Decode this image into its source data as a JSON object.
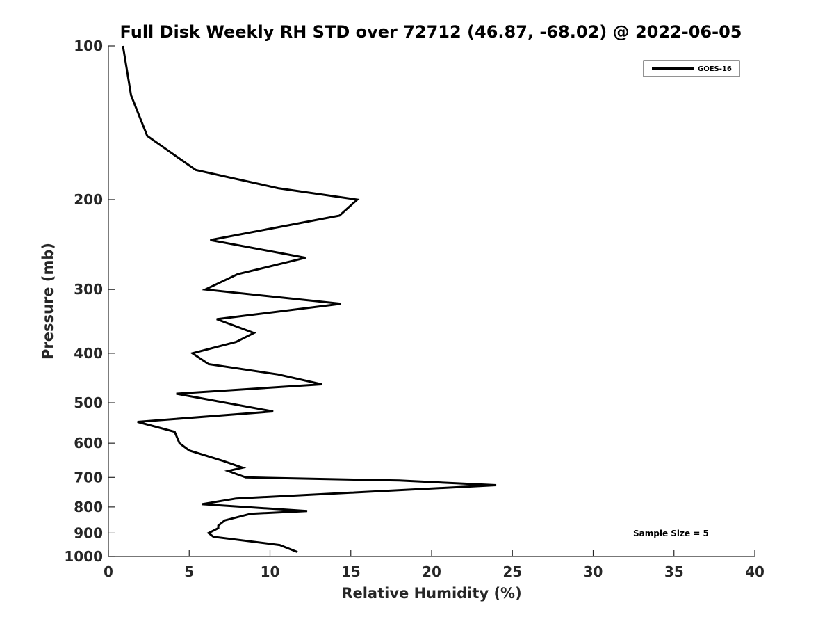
{
  "chart_data": {
    "type": "line",
    "title": "Full Disk Weekly RH STD over 72712 (46.87, -68.02) @ 2022-06-05",
    "xlabel": "Relative Humidity (%)",
    "ylabel": "Pressure (mb)",
    "xlim": [
      0,
      40
    ],
    "ylim": [
      100,
      1000
    ],
    "y_scale": "log",
    "y_reversed": true,
    "x_ticks": [
      0,
      5,
      10,
      15,
      20,
      25,
      30,
      35,
      40
    ],
    "y_ticks": [
      100,
      200,
      300,
      400,
      500,
      600,
      700,
      800,
      900,
      1000
    ],
    "grid": false,
    "legend_position": "top-right",
    "annotation": "Sample Size = 5",
    "series": [
      {
        "name": "GOES-16",
        "color": "#000000",
        "points": [
          [
            0.9,
            100
          ],
          [
            1.4,
            125
          ],
          [
            2.4,
            150
          ],
          [
            5.4,
            175
          ],
          [
            10.5,
            190
          ],
          [
            15.4,
            200
          ],
          [
            14.3,
            215
          ],
          [
            6.3,
            240
          ],
          [
            12.2,
            260
          ],
          [
            8.0,
            280
          ],
          [
            6.0,
            300
          ],
          [
            14.4,
            320
          ],
          [
            6.7,
            343
          ],
          [
            9.0,
            365
          ],
          [
            7.9,
            380
          ],
          [
            5.2,
            400
          ],
          [
            6.2,
            420
          ],
          [
            10.5,
            440
          ],
          [
            13.2,
            460
          ],
          [
            4.2,
            480
          ],
          [
            10.2,
            520
          ],
          [
            1.8,
            545
          ],
          [
            4.1,
            570
          ],
          [
            4.3,
            590
          ],
          [
            4.4,
            600
          ],
          [
            5.0,
            620
          ],
          [
            7.1,
            650
          ],
          [
            8.3,
            670
          ],
          [
            7.4,
            680
          ],
          [
            8.5,
            700
          ],
          [
            18.0,
            710
          ],
          [
            24.0,
            725
          ],
          [
            15.0,
            750
          ],
          [
            7.9,
            770
          ],
          [
            5.8,
            790
          ],
          [
            12.3,
            815
          ],
          [
            8.8,
            825
          ],
          [
            7.2,
            850
          ],
          [
            6.8,
            870
          ],
          [
            6.8,
            880
          ],
          [
            6.2,
            900
          ],
          [
            6.5,
            915
          ],
          [
            10.6,
            950
          ],
          [
            11.7,
            980
          ]
        ]
      }
    ]
  }
}
